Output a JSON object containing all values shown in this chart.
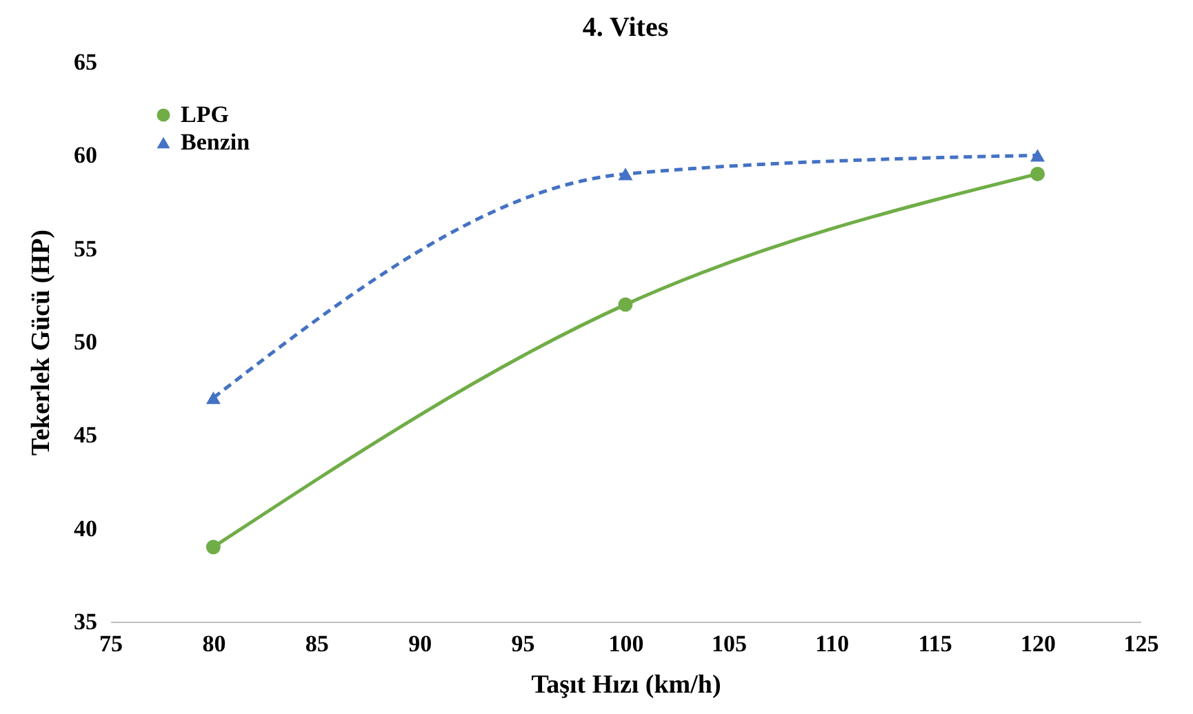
{
  "chart_data": {
    "type": "line",
    "title": "4. Vites",
    "xlabel": "Taşıt Hızı (km/h)",
    "ylabel": "Tekerlek  Gücü (HP)",
    "x": [
      80,
      100,
      120
    ],
    "series": [
      {
        "name": "LPG",
        "color": "#70ad47",
        "values": [
          39,
          52,
          59
        ],
        "marker": "circle",
        "line_style": "solid"
      },
      {
        "name": "Benzin",
        "color": "#4472c4",
        "values": [
          47,
          59,
          60
        ],
        "marker": "triangle",
        "line_style": "dashed"
      }
    ],
    "xlim": [
      75,
      125
    ],
    "xticks": [
      75,
      80,
      85,
      90,
      95,
      100,
      105,
      110,
      115,
      120,
      125
    ],
    "ylim": [
      35,
      65
    ],
    "yticks": [
      35,
      40,
      45,
      50,
      55,
      60,
      65
    ],
    "grid": false,
    "legend": "top left"
  }
}
